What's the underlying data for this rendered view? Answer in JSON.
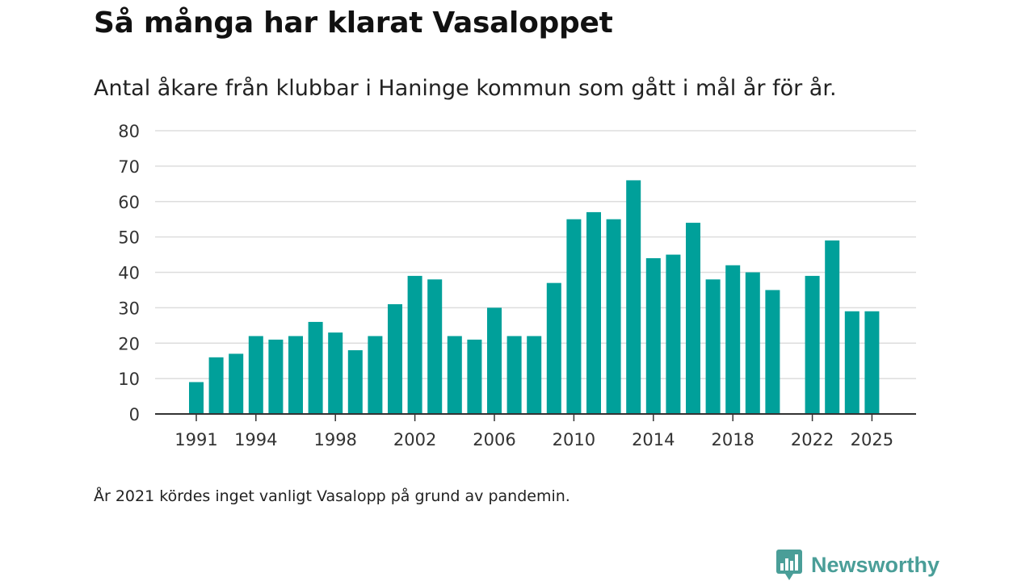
{
  "title": "Så många har klarat Vasaloppet",
  "subtitle": "Antal åkare från klubbar i Haninge kommun som gått i mål år för år.",
  "note": "År 2021 kördes inget vanligt Vasalopp på grund av pandemin.",
  "brand": {
    "name": "Newsworthy",
    "icon": "newsworthy-logo-icon",
    "color": "#4a9e98"
  },
  "colors": {
    "bar": "#00a09a",
    "grid": "#dddddd",
    "axis": "#333333"
  },
  "chart_data": {
    "type": "bar",
    "title": "Så många har klarat Vasaloppet",
    "xlabel": "",
    "ylabel": "",
    "ylim": [
      0,
      80
    ],
    "yticks": [
      0,
      10,
      20,
      30,
      40,
      50,
      60,
      70,
      80
    ],
    "xlim": [
      1988,
      2026
    ],
    "xticks": [
      1991,
      1994,
      1998,
      2002,
      2006,
      2010,
      2014,
      2018,
      2022,
      2025
    ],
    "grid": true,
    "categories": [
      1991,
      1992,
      1993,
      1994,
      1995,
      1996,
      1997,
      1998,
      1999,
      2000,
      2001,
      2002,
      2003,
      2004,
      2005,
      2006,
      2007,
      2008,
      2009,
      2010,
      2011,
      2012,
      2013,
      2014,
      2015,
      2016,
      2017,
      2018,
      2019,
      2020,
      2021,
      2022,
      2023,
      2024,
      2025
    ],
    "values": [
      9,
      16,
      17,
      22,
      21,
      22,
      26,
      23,
      18,
      22,
      31,
      39,
      38,
      22,
      21,
      30,
      22,
      22,
      37,
      55,
      57,
      55,
      66,
      44,
      45,
      54,
      38,
      42,
      40,
      35,
      null,
      39,
      49,
      29,
      29
    ]
  }
}
